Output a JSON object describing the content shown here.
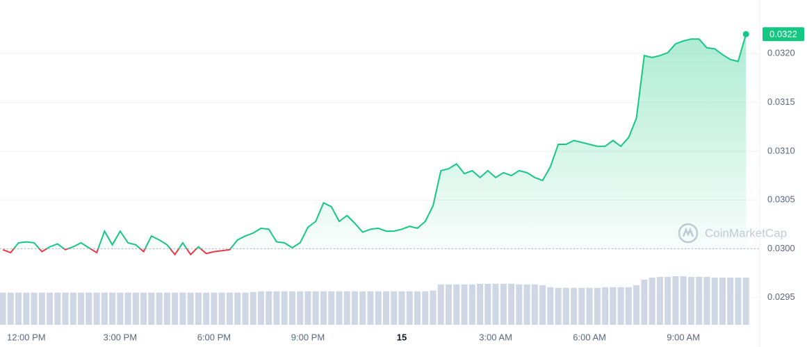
{
  "chart_data": {
    "type": "line",
    "x": [
      -0.75,
      -0.5,
      -0.25,
      0,
      0.25,
      0.5,
      0.75,
      1,
      1.25,
      1.5,
      1.75,
      2,
      2.25,
      2.5,
      2.75,
      3,
      3.25,
      3.5,
      3.75,
      4,
      4.25,
      4.5,
      4.75,
      5,
      5.25,
      5.5,
      5.75,
      6,
      6.25,
      6.5,
      6.75,
      7,
      7.25,
      7.5,
      7.75,
      8,
      8.25,
      8.5,
      8.75,
      9,
      9.25,
      9.5,
      9.75,
      10,
      10.25,
      10.5,
      10.75,
      11,
      11.25,
      11.5,
      11.75,
      12,
      12.25,
      12.5,
      12.75,
      13,
      13.25,
      13.5,
      13.75,
      14,
      14.25,
      14.5,
      14.75,
      15,
      15.25,
      15.5,
      15.75,
      16,
      16.25,
      16.5,
      16.75,
      17,
      17.25,
      17.5,
      17.75,
      18,
      18.25,
      18.5,
      18.75,
      19,
      19.25,
      19.5,
      19.75,
      20,
      20.25,
      20.5,
      20.75,
      21,
      21.25,
      21.5,
      21.75,
      22,
      22.25,
      22.5,
      22.75,
      23
    ],
    "series": [
      {
        "color": "#16c784",
        "values": [
          0.02999,
          0.02996,
          0.03006,
          0.03007,
          0.03006,
          0.02997,
          0.03002,
          0.03005,
          0.02999,
          0.03002,
          0.03006,
          0.03001,
          0.02996,
          0.03018,
          0.03004,
          0.03018,
          0.03006,
          0.03004,
          0.02997,
          0.03013,
          0.03009,
          0.03004,
          0.02994,
          0.03006,
          0.02994,
          0.03002,
          0.02995,
          0.02997,
          0.02998,
          0.02999,
          0.03009,
          0.03013,
          0.03016,
          0.03021,
          0.0302,
          0.03007,
          0.03006,
          0.03001,
          0.03006,
          0.03022,
          0.03028,
          0.03047,
          0.03043,
          0.03028,
          0.03034,
          0.03026,
          0.03017,
          0.0302,
          0.03021,
          0.03018,
          0.03018,
          0.0302,
          0.03023,
          0.03021,
          0.03028,
          0.03044,
          0.0308,
          0.03082,
          0.03087,
          0.03077,
          0.0308,
          0.03073,
          0.0308,
          0.03073,
          0.03078,
          0.03075,
          0.0308,
          0.03078,
          0.03073,
          0.0307,
          0.03084,
          0.03107,
          0.03107,
          0.03111,
          0.03109,
          0.03107,
          0.03105,
          0.03105,
          0.03111,
          0.03105,
          0.03114,
          0.03134,
          0.03198,
          0.03196,
          0.03198,
          0.03201,
          0.0321,
          0.03213,
          0.03215,
          0.03215,
          0.03206,
          0.03205,
          0.03199,
          0.03194,
          0.03192,
          0.0322
        ]
      }
    ],
    "down_color": "#ea3943",
    "baseline": 0.03,
    "volume": [
      47,
      47,
      47,
      47,
      47,
      47,
      47,
      47,
      47,
      47,
      47,
      47,
      47,
      47,
      47,
      47,
      47,
      47,
      47,
      47,
      47,
      47,
      47,
      47,
      47,
      47,
      47,
      47,
      47,
      47,
      47,
      47,
      48,
      49,
      49,
      49,
      49,
      49,
      49,
      49,
      49,
      49,
      49,
      49,
      49,
      49,
      49,
      49,
      49,
      49,
      49,
      49,
      49,
      49,
      49,
      50,
      59,
      59,
      59,
      59,
      59,
      60,
      60,
      60,
      60,
      60,
      59,
      59,
      59,
      58,
      55,
      54,
      54,
      54,
      54,
      54,
      54,
      55,
      55,
      55,
      55,
      58,
      66,
      69,
      70,
      70,
      71,
      71,
      70,
      70,
      70,
      69,
      69,
      69,
      69,
      69
    ],
    "volume_color": "#cfd6e4",
    "xlim": [
      -0.84,
      23.44
    ],
    "xticks": [
      {
        "value": 0,
        "label": "12:00 PM"
      },
      {
        "value": 3,
        "label": "3:00 PM"
      },
      {
        "value": 6,
        "label": "6:00 PM"
      },
      {
        "value": 9,
        "label": "9:00 PM"
      },
      {
        "value": 12,
        "label": "15"
      },
      {
        "value": 15,
        "label": "3:00 AM"
      },
      {
        "value": 18,
        "label": "6:00 AM"
      },
      {
        "value": 21,
        "label": "9:00 AM"
      }
    ],
    "ylim": [
      0.02922,
      0.03255
    ],
    "yticks": [
      {
        "value": 0.0295,
        "label": "0.0295"
      },
      {
        "value": 0.03,
        "label": "0.0300"
      },
      {
        "value": 0.0305,
        "label": "0.0305"
      },
      {
        "value": 0.031,
        "label": "0.0310"
      },
      {
        "value": 0.0315,
        "label": "0.0315"
      },
      {
        "value": 0.032,
        "label": "0.0320"
      }
    ],
    "grid": true,
    "price_tag": {
      "value": 0.0322,
      "label": "0.0322"
    },
    "watermark": "CoinMarketCap"
  }
}
